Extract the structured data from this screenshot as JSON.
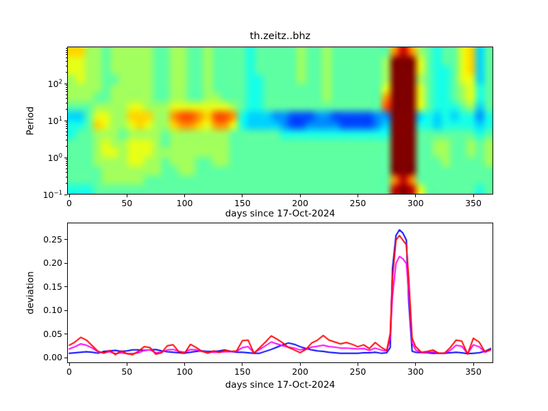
{
  "figure": {
    "title": "th.zeitz..bhz",
    "background": "#ffffff",
    "text_color": "#000000"
  },
  "chart_data": [
    {
      "type": "heatmap",
      "title": "th.zeitz..bhz",
      "xlabel": "days since 17-Oct-2024",
      "ylabel": "Period",
      "y_scale": "log",
      "period_range": [
        0.1,
        1000
      ],
      "xlim": [
        -1.2,
        366.6
      ],
      "x_ticks": [
        0,
        50,
        100,
        150,
        200,
        250,
        300,
        350
      ],
      "x_tick_labels": [
        "0",
        "50",
        "100",
        "150",
        "200",
        "250",
        "300",
        "350"
      ],
      "y_ticks": [
        {
          "label": "10^−1",
          "value": 0.1
        },
        {
          "label": "10^0",
          "value": 1
        },
        {
          "label": "10^1",
          "value": 10
        },
        {
          "label": "10^2",
          "value": 100
        }
      ],
      "colormap": "jet",
      "grid_encoding": "each row is 50 hex digits (days 0-365 left to right); digit/15 = jet colormap value; rows span period 1000 (top) to 0.1 (bottom), 16 log-spaced rows",
      "rows": [
        "aa887888887788778777767777787787777777beb876779a57",
        "99887888887788778777767777787787777778fff976779a57",
        "99887888887788778777767777787787777778fff976679a57",
        "89887788887788778777766777787787777778fff876679957",
        "88887888887788778777766777777787777779fff976678967",
        "88877888887788778877766777777787777 77bfff976678967",
        "777888899888999999987667777777777777 7cfff976667857",
        "5579988aaa88bccbaccb655544333443333344fff565656646",
        "667a9889a988abba9bb9655554334444333345fff665666656",
        "67788878888788888887777776666666666666fff777777767",
        "7778988999878888888777777777777777777 7fff778877878",
        "7778998999888888888777777777777777777 7fff778877878",
        "7778888998878887788777777777777777777 7fff777877778",
        "7777888888877887777777777777777777777 7fff777777777",
        "7777888887777777777777777777777777777 7beb777777777",
        "6667777777777777777777777777777777777 7efe977777767"
      ]
    },
    {
      "type": "line",
      "xlabel": "days since 17-Oct-2024",
      "ylabel": "deviation",
      "xlim": [
        -1.2,
        366.6
      ],
      "ylim": [
        -0.0116,
        0.286
      ],
      "x_ticks": [
        0,
        50,
        100,
        150,
        200,
        250,
        300,
        350
      ],
      "x_tick_labels": [
        "0",
        "50",
        "100",
        "150",
        "200",
        "250",
        "300",
        "350"
      ],
      "y_ticks": [
        0,
        0.05,
        0.1,
        0.15,
        0.2,
        0.25
      ],
      "y_tick_labels": [
        "0.00",
        "0.05",
        "0.10",
        "0.15",
        "0.20",
        "0.25"
      ],
      "x": [
        0,
        5,
        10,
        15,
        20,
        25,
        30,
        35,
        40,
        45,
        50,
        55,
        60,
        65,
        70,
        75,
        80,
        85,
        90,
        95,
        100,
        105,
        110,
        115,
        120,
        125,
        130,
        135,
        140,
        145,
        150,
        155,
        160,
        165,
        170,
        175,
        180,
        185,
        190,
        195,
        200,
        205,
        210,
        215,
        220,
        225,
        230,
        235,
        240,
        245,
        250,
        255,
        260,
        265,
        270,
        275,
        278,
        280,
        283,
        286,
        289,
        292,
        294,
        297,
        300,
        305,
        310,
        315,
        320,
        325,
        330,
        335,
        340,
        345,
        350,
        355,
        360,
        365
      ],
      "series": [
        {
          "name": "blue",
          "color": "#0000ff",
          "values": [
            0.008,
            0.009,
            0.01,
            0.011,
            0.01,
            0.008,
            0.012,
            0.013,
            0.014,
            0.012,
            0.013,
            0.015,
            0.015,
            0.014,
            0.015,
            0.016,
            0.013,
            0.011,
            0.01,
            0.009,
            0.008,
            0.01,
            0.012,
            0.013,
            0.012,
            0.012,
            0.013,
            0.015,
            0.012,
            0.01,
            0.01,
            0.009,
            0.008,
            0.008,
            0.012,
            0.016,
            0.021,
            0.026,
            0.03,
            0.027,
            0.022,
            0.018,
            0.015,
            0.013,
            0.012,
            0.01,
            0.009,
            0.008,
            0.008,
            0.008,
            0.008,
            0.009,
            0.009,
            0.01,
            0.008,
            0.009,
            0.02,
            0.19,
            0.26,
            0.272,
            0.265,
            0.25,
            0.12,
            0.012,
            0.01,
            0.009,
            0.009,
            0.008,
            0.008,
            0.008,
            0.009,
            0.01,
            0.009,
            0.007,
            0.008,
            0.009,
            0.012,
            0.018
          ]
        },
        {
          "name": "magenta",
          "color": "#ff00ff",
          "values": [
            0.017,
            0.022,
            0.028,
            0.025,
            0.019,
            0.011,
            0.009,
            0.011,
            0.007,
            0.009,
            0.007,
            0.007,
            0.009,
            0.014,
            0.015,
            0.009,
            0.01,
            0.015,
            0.016,
            0.012,
            0.01,
            0.016,
            0.015,
            0.012,
            0.01,
            0.01,
            0.01,
            0.011,
            0.011,
            0.012,
            0.02,
            0.022,
            0.009,
            0.016,
            0.024,
            0.032,
            0.028,
            0.024,
            0.021,
            0.019,
            0.015,
            0.017,
            0.021,
            0.023,
            0.025,
            0.022,
            0.021,
            0.019,
            0.019,
            0.018,
            0.017,
            0.018,
            0.014,
            0.019,
            0.015,
            0.012,
            0.04,
            0.13,
            0.2,
            0.215,
            0.21,
            0.2,
            0.14,
            0.03,
            0.015,
            0.009,
            0.01,
            0.011,
            0.008,
            0.008,
            0.014,
            0.025,
            0.023,
            0.007,
            0.026,
            0.022,
            0.01,
            0.015
          ]
        },
        {
          "name": "red",
          "color": "#ff0000",
          "values": [
            0.025,
            0.032,
            0.042,
            0.036,
            0.024,
            0.012,
            0.008,
            0.014,
            0.005,
            0.013,
            0.007,
            0.005,
            0.012,
            0.022,
            0.02,
            0.006,
            0.009,
            0.024,
            0.026,
            0.011,
            0.008,
            0.027,
            0.02,
            0.012,
            0.008,
            0.013,
            0.01,
            0.014,
            0.012,
            0.013,
            0.035,
            0.036,
            0.008,
            0.02,
            0.032,
            0.045,
            0.038,
            0.03,
            0.02,
            0.015,
            0.009,
            0.016,
            0.03,
            0.036,
            0.046,
            0.036,
            0.032,
            0.028,
            0.031,
            0.027,
            0.022,
            0.026,
            0.018,
            0.031,
            0.021,
            0.014,
            0.05,
            0.17,
            0.25,
            0.26,
            0.25,
            0.24,
            0.17,
            0.04,
            0.022,
            0.01,
            0.012,
            0.015,
            0.008,
            0.008,
            0.02,
            0.036,
            0.034,
            0.006,
            0.04,
            0.032,
            0.011,
            0.016
          ]
        }
      ]
    }
  ]
}
